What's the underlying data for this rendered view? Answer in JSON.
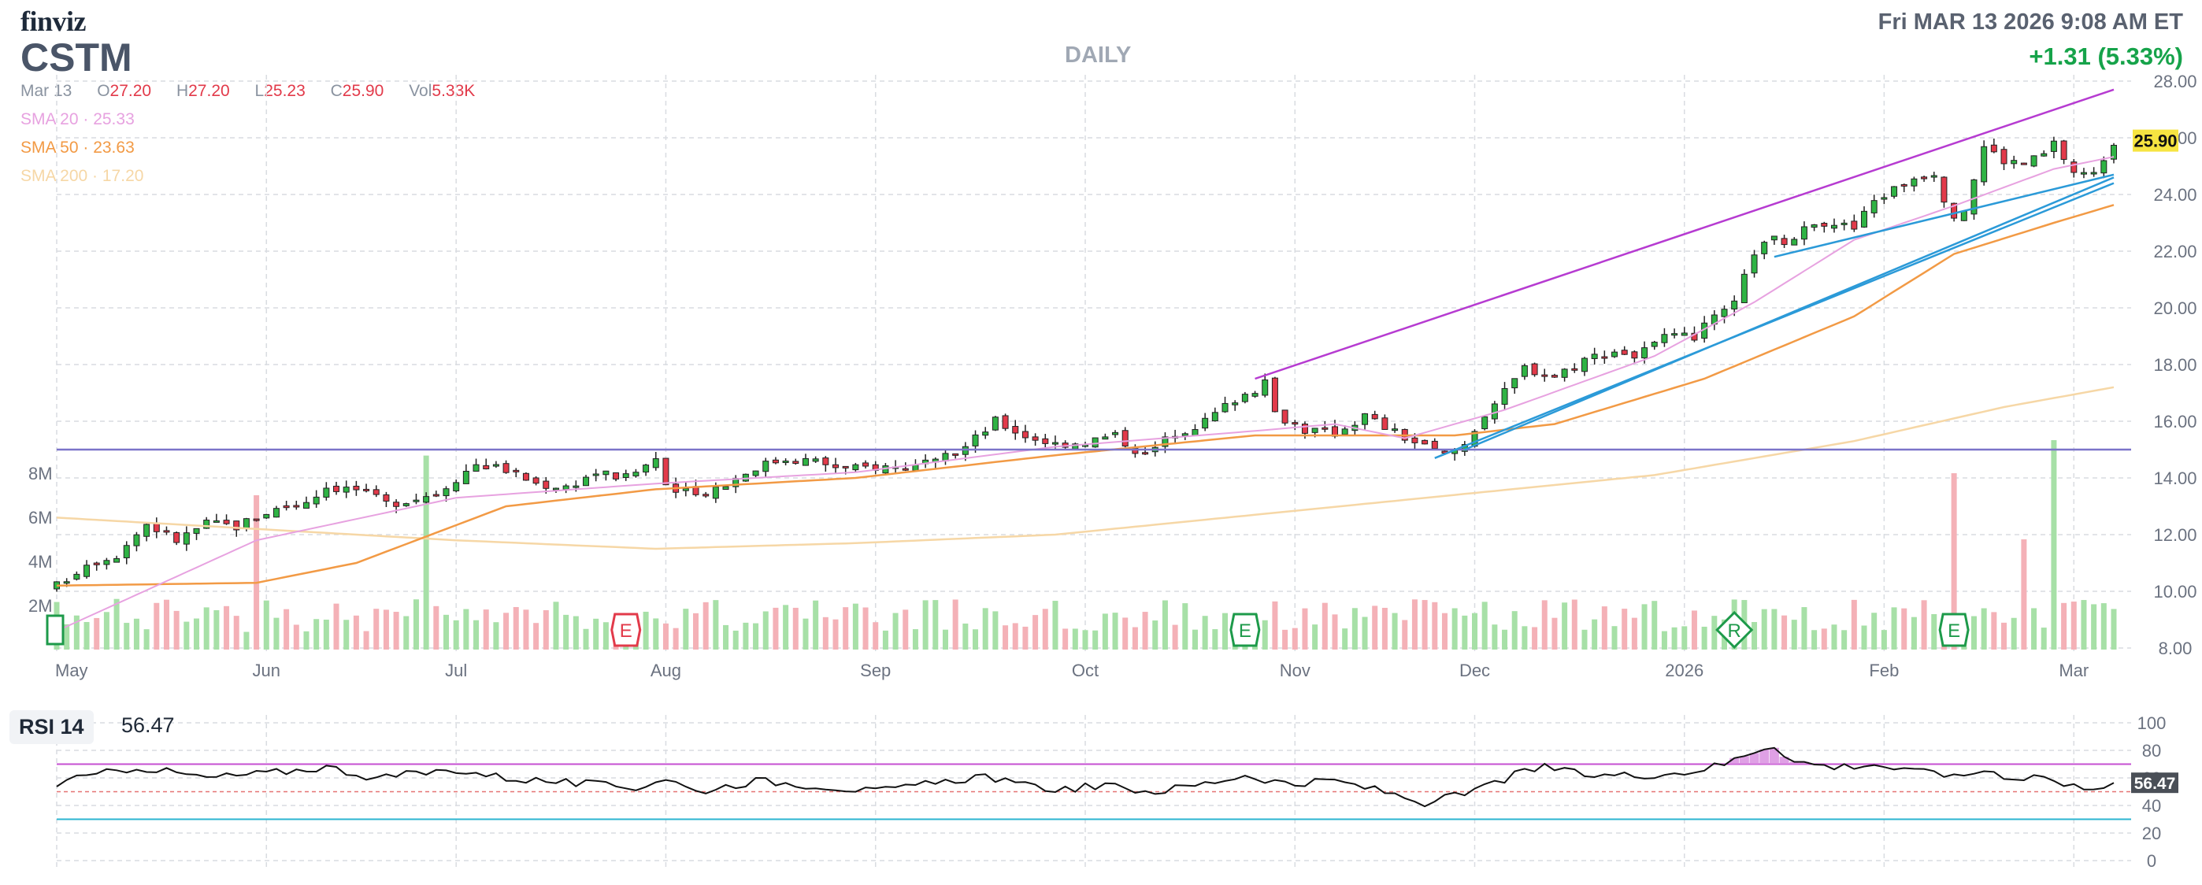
{
  "header": {
    "logo": "finviz",
    "ticker": "CSTM",
    "period": "DAILY",
    "datetime": "Fri MAR 13 2026 9:08 AM ET",
    "change": "+1.31 (5.33%)"
  },
  "ohlc": {
    "date": "Mar 13",
    "open_label": "O",
    "open": "27.20",
    "high_label": "H",
    "high": "27.20",
    "low_label": "L",
    "low": "25.23",
    "close_label": "C",
    "close": "25.90",
    "vol_label": "Vol",
    "vol": "5.33K"
  },
  "sma": {
    "sma20": "SMA 20 · 25.33",
    "sma50": "SMA 50 · 23.63",
    "sma200": "SMA 200 · 17.20"
  },
  "rsi": {
    "label": "RSI 14",
    "value": "56.47"
  },
  "colors": {
    "up": "#2fb344",
    "down": "#e23a4a",
    "vol_up": "#a7e0a7",
    "vol_down": "#f4b1b7",
    "sma20": "#e7a2e0",
    "sma50": "#f29a45",
    "sma200": "#f6d7a6",
    "trend_purple": "#b63bd1",
    "trend_blue": "#2b9ad8",
    "hline": "#7b74c9",
    "rsi_line": "#111111",
    "rsi_over": "#c64fd2",
    "rsi_under": "#2bb5d0",
    "last_price_bg": "#f6e441"
  },
  "chart_data": [
    {
      "type": "candlestick",
      "title": "",
      "ylim": [
        8,
        28
      ],
      "yticks": [
        "28.00",
        "26.00",
        "24.00",
        "22.00",
        "20.00",
        "18.00",
        "16.00",
        "14.00",
        "12.00",
        "10.00",
        "8.00"
      ],
      "xticks": [
        "May",
        "Jun",
        "Jul",
        "Aug",
        "Sep",
        "Oct",
        "Nov",
        "Dec",
        "2026",
        "Feb",
        "Mar"
      ],
      "xtick_days": [
        0,
        21,
        40,
        61,
        82,
        103,
        124,
        142,
        163,
        183,
        202
      ],
      "anchors": [
        [
          0,
          10.2
        ],
        [
          3,
          11.0
        ],
        [
          6,
          11.3
        ],
        [
          9,
          12.4
        ],
        [
          12,
          11.8
        ],
        [
          15,
          12.4
        ],
        [
          18,
          12.3
        ],
        [
          21,
          12.8
        ],
        [
          25,
          13.2
        ],
        [
          27,
          13.7
        ],
        [
          30,
          13.6
        ],
        [
          33,
          13.1
        ],
        [
          36,
          13.3
        ],
        [
          38,
          13.5
        ],
        [
          40,
          14.0
        ],
        [
          42,
          14.5
        ],
        [
          45,
          14.3
        ],
        [
          48,
          13.8
        ],
        [
          51,
          13.7
        ],
        [
          54,
          14.2
        ],
        [
          57,
          14.0
        ],
        [
          60,
          14.7
        ],
        [
          61,
          13.6
        ],
        [
          64,
          13.4
        ],
        [
          67,
          13.8
        ],
        [
          70,
          14.4
        ],
        [
          73,
          14.7
        ],
        [
          76,
          14.6
        ],
        [
          79,
          14.3
        ],
        [
          82,
          14.4
        ],
        [
          85,
          14.4
        ],
        [
          88,
          14.5
        ],
        [
          91,
          15.1
        ],
        [
          94,
          16.0
        ],
        [
          97,
          15.5
        ],
        [
          100,
          15.2
        ],
        [
          103,
          15.3
        ],
        [
          106,
          15.5
        ],
        [
          109,
          14.8
        ],
        [
          112,
          15.6
        ],
        [
          115,
          16.0
        ],
        [
          118,
          16.8
        ],
        [
          121,
          17.3
        ],
        [
          122,
          16.3
        ],
        [
          125,
          15.7
        ],
        [
          128,
          15.6
        ],
        [
          131,
          16.2
        ],
        [
          134,
          15.6
        ],
        [
          137,
          15.1
        ],
        [
          139,
          14.8
        ],
        [
          141,
          15.2
        ],
        [
          143,
          16.3
        ],
        [
          145,
          17.0
        ],
        [
          147,
          17.9
        ],
        [
          150,
          17.6
        ],
        [
          153,
          18.2
        ],
        [
          156,
          18.5
        ],
        [
          158,
          18.3
        ],
        [
          161,
          18.9
        ],
        [
          164,
          19.0
        ],
        [
          166,
          19.6
        ],
        [
          168,
          20.1
        ],
        [
          170,
          22.0
        ],
        [
          172,
          22.4
        ],
        [
          174,
          22.3
        ],
        [
          176,
          23.1
        ],
        [
          178,
          23.0
        ],
        [
          180,
          22.8
        ],
        [
          182,
          23.8
        ],
        [
          184,
          24.2
        ],
        [
          186,
          24.6
        ],
        [
          188,
          24.8
        ],
        [
          190,
          23.0
        ],
        [
          191,
          23.5
        ],
        [
          193,
          25.7
        ],
        [
          195,
          25.2
        ],
        [
          197,
          25.1
        ],
        [
          199,
          25.4
        ],
        [
          200,
          25.8
        ],
        [
          202,
          24.8
        ],
        [
          204,
          24.7
        ],
        [
          206,
          25.9
        ]
      ],
      "n_days": 206,
      "last_price": "25.90",
      "sma20": [
        [
          0,
          8.6
        ],
        [
          20,
          11.8
        ],
        [
          40,
          13.3
        ],
        [
          60,
          13.8
        ],
        [
          80,
          14.2
        ],
        [
          100,
          15.1
        ],
        [
          118,
          15.6
        ],
        [
          128,
          15.9
        ],
        [
          135,
          15.4
        ],
        [
          145,
          16.4
        ],
        [
          160,
          18.3
        ],
        [
          170,
          20.2
        ],
        [
          180,
          22.4
        ],
        [
          190,
          23.6
        ],
        [
          200,
          24.9
        ],
        [
          206,
          25.33
        ]
      ],
      "sma50": [
        [
          0,
          10.2
        ],
        [
          20,
          10.3
        ],
        [
          30,
          11.0
        ],
        [
          45,
          13.0
        ],
        [
          60,
          13.6
        ],
        [
          80,
          14.0
        ],
        [
          100,
          14.8
        ],
        [
          120,
          15.5
        ],
        [
          140,
          15.5
        ],
        [
          150,
          15.9
        ],
        [
          165,
          17.5
        ],
        [
          180,
          19.7
        ],
        [
          190,
          21.9
        ],
        [
          200,
          23.0
        ],
        [
          206,
          23.63
        ]
      ],
      "sma200": [
        [
          0,
          12.6
        ],
        [
          40,
          11.8
        ],
        [
          60,
          11.5
        ],
        [
          80,
          11.7
        ],
        [
          100,
          12.0
        ],
        [
          120,
          12.7
        ],
        [
          140,
          13.4
        ],
        [
          160,
          14.1
        ],
        [
          180,
          15.3
        ],
        [
          195,
          16.5
        ],
        [
          206,
          17.2
        ]
      ],
      "hline": 15.0,
      "trendlines": [
        {
          "color": "purple",
          "from": [
            120,
            17.5
          ],
          "to": [
            206,
            27.7
          ]
        },
        {
          "color": "blue",
          "from": [
            138,
            14.7
          ],
          "to": [
            206,
            24.4
          ]
        },
        {
          "color": "blue",
          "from": [
            141,
            15.0
          ],
          "to": [
            206,
            24.6
          ]
        },
        {
          "color": "blue",
          "from": [
            172,
            21.8
          ],
          "to": [
            206,
            24.7
          ]
        }
      ],
      "volume_ticks": [
        "8M",
        "6M",
        "4M",
        "2M"
      ],
      "vol_highlights": [
        [
          20,
          7.0
        ],
        [
          37,
          8.8
        ],
        [
          190,
          8.0
        ],
        [
          197,
          5.0
        ],
        [
          200,
          9.5
        ]
      ],
      "event_markers": [
        {
          "day": 57,
          "label": "E",
          "kind": "down"
        },
        {
          "day": 119,
          "label": "E",
          "kind": "up"
        },
        {
          "day": 168,
          "label": "R",
          "kind": "up"
        },
        {
          "day": 190,
          "label": "E",
          "kind": "up"
        }
      ]
    },
    {
      "type": "line",
      "title": "RSI 14",
      "ylim": [
        0,
        100
      ],
      "yticks": [
        "100",
        "80",
        "60",
        "40",
        "20",
        "0"
      ],
      "overbought": 70,
      "oversold": 30,
      "midline": 50,
      "last_value": "56.47",
      "values_anchor": [
        [
          0,
          56
        ],
        [
          8,
          68
        ],
        [
          15,
          60
        ],
        [
          22,
          64
        ],
        [
          27,
          68
        ],
        [
          32,
          60
        ],
        [
          40,
          66
        ],
        [
          45,
          60
        ],
        [
          52,
          56
        ],
        [
          58,
          53
        ],
        [
          61,
          60
        ],
        [
          64,
          50
        ],
        [
          70,
          58
        ],
        [
          77,
          54
        ],
        [
          82,
          50
        ],
        [
          88,
          56
        ],
        [
          93,
          62
        ],
        [
          96,
          55
        ],
        [
          100,
          52
        ],
        [
          105,
          54
        ],
        [
          110,
          50
        ],
        [
          115,
          56
        ],
        [
          119,
          62
        ],
        [
          124,
          55
        ],
        [
          128,
          58
        ],
        [
          133,
          50
        ],
        [
          137,
          42
        ],
        [
          141,
          48
        ],
        [
          146,
          62
        ],
        [
          149,
          68
        ],
        [
          153,
          62
        ],
        [
          158,
          62
        ],
        [
          163,
          64
        ],
        [
          167,
          70
        ],
        [
          170,
          80
        ],
        [
          172,
          84
        ],
        [
          174,
          72
        ],
        [
          178,
          68
        ],
        [
          182,
          70
        ],
        [
          186,
          64
        ],
        [
          188,
          66
        ],
        [
          190,
          60
        ],
        [
          193,
          66
        ],
        [
          196,
          60
        ],
        [
          199,
          62
        ],
        [
          201,
          54
        ],
        [
          204,
          54
        ],
        [
          206,
          56.47
        ]
      ]
    }
  ]
}
